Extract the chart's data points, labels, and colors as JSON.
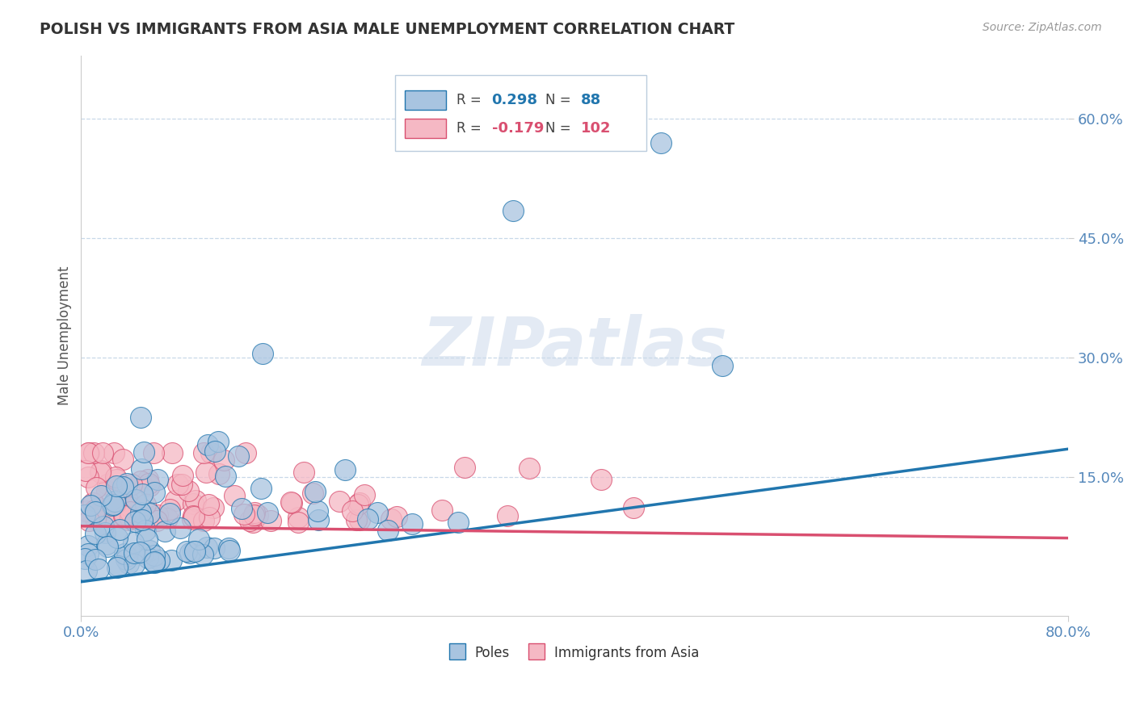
{
  "title": "POLISH VS IMMIGRANTS FROM ASIA MALE UNEMPLOYMENT CORRELATION CHART",
  "source_text": "Source: ZipAtlas.com",
  "ylabel": "Male Unemployment",
  "xlim": [
    0.0,
    0.8
  ],
  "ylim": [
    -0.025,
    0.68
  ],
  "poles_R": 0.298,
  "poles_N": 88,
  "asia_R": -0.179,
  "asia_N": 102,
  "poles_color": "#a8c4e0",
  "poles_line_color": "#2176ae",
  "asia_color": "#f5b8c4",
  "asia_line_color": "#d94f70",
  "background_color": "#ffffff",
  "grid_color": "#c8d8e8",
  "title_color": "#333333",
  "axis_color": "#5588bb",
  "legend_R_color_poles": "#2176ae",
  "legend_R_color_asia": "#d94f70",
  "watermark_text": "ZIPatlas",
  "poles_line_x": [
    0.0,
    0.8
  ],
  "poles_line_y": [
    0.018,
    0.185
  ],
  "asia_line_x": [
    0.0,
    0.8
  ],
  "asia_line_y": [
    0.088,
    0.073
  ],
  "ytick_vals": [
    0.15,
    0.3,
    0.45,
    0.6
  ],
  "ytick_labels": [
    "15.0%",
    "30.0%",
    "45.0%",
    "60.0%"
  ],
  "xtick_vals": [
    0.0,
    0.8
  ],
  "xtick_labels": [
    "0.0%",
    "80.0%"
  ]
}
